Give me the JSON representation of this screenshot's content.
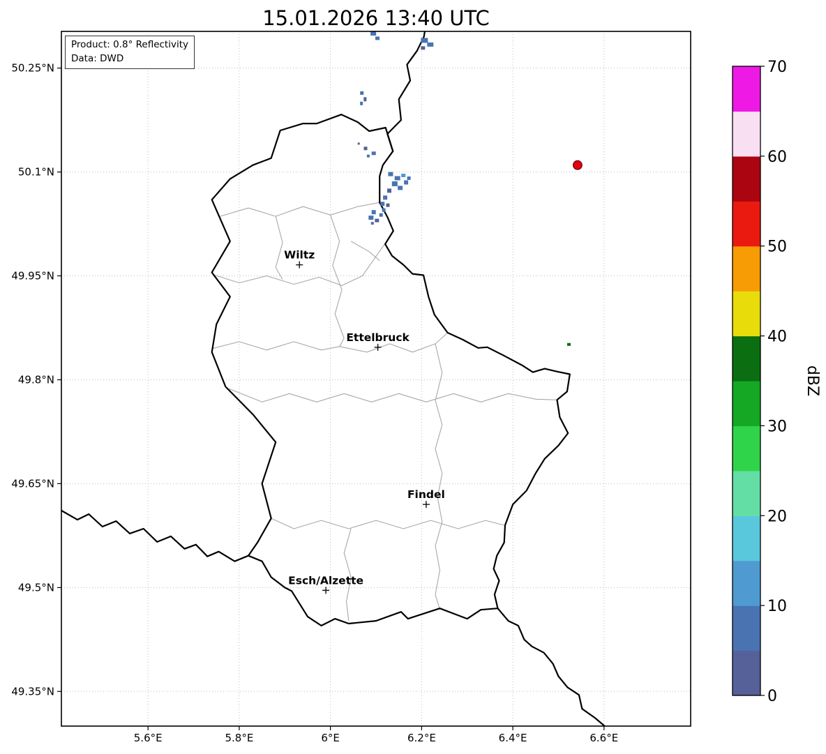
{
  "title": "15.01.2026 13:40 UTC",
  "info_box": {
    "product_line": "Product: 0.8° Reflectivity",
    "data_line": "Data: DWD"
  },
  "colorbar": {
    "label": "dBZ",
    "min": 0,
    "max": 70,
    "tick_values": [
      0,
      10,
      20,
      30,
      40,
      50,
      60,
      70
    ],
    "tick_labels": [
      "0",
      "10",
      "20",
      "30",
      "40",
      "50",
      "60",
      "70"
    ],
    "palette": [
      "#566099",
      "#4a73b2",
      "#4f9bd1",
      "#5ac8dc",
      "#63dfa6",
      "#2fd44a",
      "#14a824",
      "#0b6e10",
      "#e8dd0a",
      "#f79c05",
      "#ea1a10",
      "#ab0511",
      "#f9dff2",
      "#ee19e4"
    ]
  },
  "map": {
    "extent": {
      "lon_min": 5.41,
      "lon_max": 6.79,
      "lat_min": 49.3,
      "lat_max": 50.303
    },
    "lat_ticks": [
      {
        "value": 50.25,
        "label": "50.25°N"
      },
      {
        "value": 50.1,
        "label": "50.1°N"
      },
      {
        "value": 49.95,
        "label": "49.95°N"
      },
      {
        "value": 49.8,
        "label": "49.8°N"
      },
      {
        "value": 49.65,
        "label": "49.65°N"
      },
      {
        "value": 49.5,
        "label": "49.5°N"
      },
      {
        "value": 49.35,
        "label": "49.35°N"
      }
    ],
    "lon_ticks": [
      {
        "value": 5.6,
        "label": "5.6°E"
      },
      {
        "value": 5.8,
        "label": "5.8°E"
      },
      {
        "value": 6.0,
        "label": "6°E"
      },
      {
        "value": 6.2,
        "label": "6.2°E"
      },
      {
        "value": 6.4,
        "label": "6.4°E"
      },
      {
        "value": 6.6,
        "label": "6.6°E"
      }
    ],
    "cities": [
      {
        "name": "Wiltz",
        "lon": 5.932,
        "lat": 49.966
      },
      {
        "name": "Ettelbruck",
        "lon": 6.104,
        "lat": 49.847
      },
      {
        "name": "Findel",
        "lon": 6.21,
        "lat": 49.62
      },
      {
        "name": "Esch/Alzette",
        "lon": 5.99,
        "lat": 49.496
      }
    ],
    "radar_site": {
      "lon": 6.542,
      "lat": 50.11,
      "color": "#e60010",
      "edge": "#600000"
    },
    "borders": {
      "country": [
        [
          6.024,
          50.183
        ],
        [
          6.06,
          50.172
        ],
        [
          6.085,
          50.159
        ],
        [
          6.121,
          50.164
        ],
        [
          6.137,
          50.13
        ],
        [
          6.115,
          50.11
        ],
        [
          6.108,
          50.094
        ],
        [
          6.108,
          50.056
        ],
        [
          6.125,
          50.035
        ],
        [
          6.138,
          50.015
        ],
        [
          6.12,
          49.996
        ],
        [
          6.135,
          49.979
        ],
        [
          6.16,
          49.966
        ],
        [
          6.18,
          49.953
        ],
        [
          6.204,
          49.951
        ],
        [
          6.215,
          49.92
        ],
        [
          6.228,
          49.894
        ],
        [
          6.257,
          49.868
        ],
        [
          6.29,
          49.858
        ],
        [
          6.324,
          49.846
        ],
        [
          6.344,
          49.847
        ],
        [
          6.38,
          49.835
        ],
        [
          6.42,
          49.821
        ],
        [
          6.444,
          49.811
        ],
        [
          6.47,
          49.816
        ],
        [
          6.496,
          49.812
        ],
        [
          6.525,
          49.808
        ],
        [
          6.519,
          49.783
        ],
        [
          6.497,
          49.771
        ],
        [
          6.503,
          49.746
        ],
        [
          6.521,
          49.723
        ],
        [
          6.5,
          49.705
        ],
        [
          6.47,
          49.686
        ],
        [
          6.45,
          49.665
        ],
        [
          6.43,
          49.64
        ],
        [
          6.4,
          49.62
        ],
        [
          6.383,
          49.59
        ],
        [
          6.381,
          49.565
        ],
        [
          6.365,
          49.546
        ],
        [
          6.358,
          49.527
        ],
        [
          6.37,
          49.51
        ],
        [
          6.36,
          49.49
        ],
        [
          6.367,
          49.47
        ],
        [
          6.33,
          49.468
        ],
        [
          6.3,
          49.455
        ],
        [
          6.24,
          49.47
        ],
        [
          6.17,
          49.455
        ],
        [
          6.155,
          49.465
        ],
        [
          6.1,
          49.452
        ],
        [
          6.04,
          49.448
        ],
        [
          6.01,
          49.455
        ],
        [
          5.98,
          49.445
        ],
        [
          5.95,
          49.458
        ],
        [
          5.915,
          49.495
        ],
        [
          5.9,
          49.5
        ],
        [
          5.87,
          49.515
        ],
        [
          5.85,
          49.538
        ],
        [
          5.82,
          49.546
        ],
        [
          5.84,
          49.565
        ],
        [
          5.87,
          49.6
        ],
        [
          5.85,
          49.65
        ],
        [
          5.88,
          49.71
        ],
        [
          5.83,
          49.75
        ],
        [
          5.77,
          49.79
        ],
        [
          5.74,
          49.84
        ],
        [
          5.75,
          49.88
        ],
        [
          5.78,
          49.92
        ],
        [
          5.74,
          49.955
        ],
        [
          5.78,
          50.0
        ],
        [
          5.74,
          50.06
        ],
        [
          5.78,
          50.09
        ],
        [
          5.83,
          50.11
        ],
        [
          5.87,
          50.12
        ],
        [
          5.89,
          50.16
        ],
        [
          5.94,
          50.17
        ],
        [
          5.97,
          50.17
        ],
        [
          6.024,
          50.183
        ]
      ],
      "belgium_germany": [
        [
          6.137,
          50.13
        ],
        [
          6.125,
          50.155
        ],
        [
          6.155,
          50.175
        ],
        [
          6.15,
          50.205
        ],
        [
          6.175,
          50.232
        ],
        [
          6.168,
          50.255
        ],
        [
          6.19,
          50.275
        ],
        [
          6.205,
          50.295
        ],
        [
          6.21,
          50.315
        ]
      ],
      "france_germany": [
        [
          6.367,
          49.47
        ],
        [
          6.39,
          49.452
        ],
        [
          6.412,
          49.445
        ],
        [
          6.425,
          49.425
        ],
        [
          6.442,
          49.415
        ],
        [
          6.468,
          49.406
        ],
        [
          6.488,
          49.39
        ],
        [
          6.5,
          49.372
        ],
        [
          6.52,
          49.356
        ],
        [
          6.545,
          49.345
        ],
        [
          6.552,
          49.325
        ],
        [
          6.58,
          49.312
        ],
        [
          6.605,
          49.298
        ],
        [
          6.62,
          49.285
        ]
      ],
      "belgium_france": [
        [
          5.4,
          49.615
        ],
        [
          5.445,
          49.598
        ],
        [
          5.47,
          49.606
        ],
        [
          5.5,
          49.588
        ],
        [
          5.53,
          49.596
        ],
        [
          5.56,
          49.578
        ],
        [
          5.59,
          49.585
        ],
        [
          5.62,
          49.566
        ],
        [
          5.65,
          49.574
        ],
        [
          5.68,
          49.556
        ],
        [
          5.705,
          49.562
        ],
        [
          5.73,
          49.545
        ],
        [
          5.755,
          49.552
        ],
        [
          5.79,
          49.538
        ],
        [
          5.82,
          49.546
        ]
      ]
    },
    "districts": [
      [
        [
          5.758,
          50.036
        ],
        [
          5.82,
          50.048
        ],
        [
          5.88,
          50.036
        ],
        [
          5.94,
          50.05
        ],
        [
          6.0,
          50.038
        ],
        [
          6.06,
          50.05
        ],
        [
          6.108,
          50.056
        ]
      ],
      [
        [
          5.742,
          49.952
        ],
        [
          5.8,
          49.94
        ],
        [
          5.86,
          49.95
        ],
        [
          5.92,
          49.938
        ],
        [
          5.975,
          49.948
        ],
        [
          6.025,
          49.936
        ],
        [
          6.07,
          49.95
        ],
        [
          6.12,
          49.997
        ]
      ],
      [
        [
          6.0,
          50.038
        ],
        [
          6.02,
          50.0
        ],
        [
          6.005,
          49.965
        ],
        [
          6.025,
          49.93
        ],
        [
          6.01,
          49.895
        ],
        [
          6.03,
          49.86
        ],
        [
          6.02,
          49.848
        ]
      ],
      [
        [
          5.74,
          49.845
        ],
        [
          5.8,
          49.855
        ],
        [
          5.86,
          49.843
        ],
        [
          5.92,
          49.855
        ],
        [
          5.98,
          49.843
        ],
        [
          6.02,
          49.848
        ],
        [
          6.08,
          49.84
        ],
        [
          6.13,
          49.852
        ],
        [
          6.18,
          49.84
        ],
        [
          6.23,
          49.852
        ],
        [
          6.257,
          49.868
        ]
      ],
      [
        [
          5.778,
          49.787
        ],
        [
          5.85,
          49.768
        ],
        [
          5.91,
          49.78
        ],
        [
          5.97,
          49.768
        ],
        [
          6.03,
          49.78
        ],
        [
          6.09,
          49.768
        ],
        [
          6.15,
          49.78
        ],
        [
          6.21,
          49.768
        ],
        [
          6.27,
          49.78
        ],
        [
          6.33,
          49.768
        ],
        [
          6.39,
          49.78
        ],
        [
          6.45,
          49.772
        ],
        [
          6.497,
          49.771
        ]
      ],
      [
        [
          6.23,
          49.852
        ],
        [
          6.245,
          49.81
        ],
        [
          6.23,
          49.77
        ],
        [
          6.245,
          49.735
        ],
        [
          6.23,
          49.7
        ],
        [
          6.245,
          49.665
        ],
        [
          6.235,
          49.63
        ],
        [
          6.245,
          49.595
        ],
        [
          6.23,
          49.56
        ],
        [
          6.24,
          49.525
        ],
        [
          6.23,
          49.49
        ],
        [
          6.24,
          49.468
        ]
      ],
      [
        [
          5.87,
          49.6
        ],
        [
          5.92,
          49.585
        ],
        [
          5.98,
          49.597
        ],
        [
          6.04,
          49.585
        ],
        [
          6.1,
          49.597
        ],
        [
          6.16,
          49.585
        ],
        [
          6.22,
          49.597
        ],
        [
          6.28,
          49.585
        ],
        [
          6.34,
          49.597
        ],
        [
          6.381,
          49.59
        ]
      ],
      [
        [
          6.045,
          49.585
        ],
        [
          6.03,
          49.55
        ],
        [
          6.045,
          49.515
        ],
        [
          6.035,
          49.48
        ],
        [
          6.04,
          49.452
        ]
      ],
      [
        [
          6.045,
          50.0
        ],
        [
          6.085,
          49.985
        ],
        [
          6.108,
          49.972
        ]
      ],
      [
        [
          5.88,
          50.036
        ],
        [
          5.895,
          49.998
        ],
        [
          5.88,
          49.962
        ],
        [
          5.895,
          49.945
        ]
      ]
    ],
    "echoes": [
      [
        6.094,
        50.3,
        8,
        6,
        5
      ],
      [
        6.103,
        50.293,
        6,
        5,
        5
      ],
      [
        6.206,
        50.29,
        10,
        7,
        5
      ],
      [
        6.219,
        50.284,
        9,
        6,
        5
      ],
      [
        6.203,
        50.279,
        6,
        5,
        0
      ],
      [
        6.069,
        50.214,
        5,
        5,
        5
      ],
      [
        6.076,
        50.205,
        4,
        6,
        0
      ],
      [
        6.068,
        50.199,
        4,
        5,
        5
      ],
      [
        6.077,
        50.134,
        5,
        5,
        0
      ],
      [
        6.095,
        50.127,
        6,
        5,
        5
      ],
      [
        6.083,
        50.123,
        4,
        4,
        5
      ],
      [
        6.062,
        50.141,
        3,
        3,
        0
      ],
      [
        6.132,
        50.097,
        7,
        6,
        5
      ],
      [
        6.147,
        50.091,
        8,
        6,
        5
      ],
      [
        6.16,
        50.095,
        6,
        5,
        10
      ],
      [
        6.172,
        50.091,
        5,
        5,
        5
      ],
      [
        6.141,
        50.083,
        8,
        7,
        5
      ],
      [
        6.153,
        50.077,
        7,
        6,
        5
      ],
      [
        6.166,
        50.085,
        6,
        6,
        5
      ],
      [
        6.129,
        50.073,
        6,
        6,
        0
      ],
      [
        6.12,
        50.063,
        6,
        6,
        5
      ],
      [
        6.114,
        50.054,
        6,
        6,
        5
      ],
      [
        6.126,
        50.052,
        5,
        5,
        0
      ],
      [
        6.117,
        50.045,
        5,
        5,
        5
      ],
      [
        6.095,
        50.042,
        6,
        6,
        5
      ],
      [
        6.089,
        50.034,
        7,
        6,
        5
      ],
      [
        6.102,
        50.03,
        6,
        5,
        0
      ],
      [
        6.111,
        50.038,
        5,
        5,
        5
      ],
      [
        6.092,
        50.026,
        4,
        4,
        5
      ],
      [
        6.523,
        49.851,
        5,
        4,
        35
      ]
    ]
  }
}
